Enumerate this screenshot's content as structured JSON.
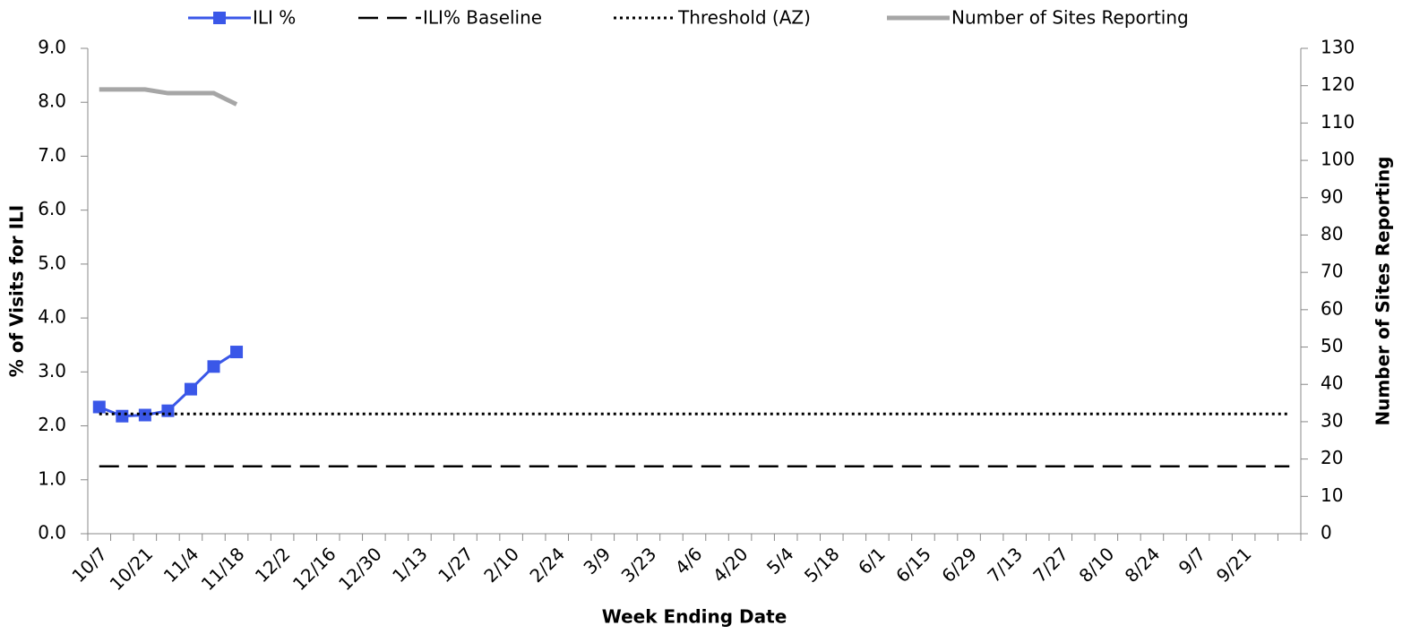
{
  "chart_data": {
    "type": "line",
    "x_label": "Week Ending Date",
    "y_label": "% of Visits for ILI",
    "y2_label": "Number of Sites Reporting",
    "categories": [
      "10/7",
      null,
      "10/21",
      null,
      "11/4",
      null,
      "11/18",
      null,
      "12/2",
      null,
      "12/16",
      null,
      "12/30",
      null,
      "1/13",
      null,
      "1/27",
      null,
      "2/10",
      null,
      "2/24",
      null,
      "3/9",
      null,
      "3/23",
      null,
      "4/6",
      null,
      "4/20",
      null,
      "5/4",
      null,
      "5/18",
      null,
      "6/1",
      null,
      "6/15",
      null,
      "6/29",
      null,
      "7/13",
      null,
      "7/27",
      null,
      "8/10",
      null,
      "8/24",
      null,
      "9/7",
      null,
      "9/21",
      null,
      null
    ],
    "ylim": [
      0,
      9
    ],
    "yticks": [
      {
        "value": 0,
        "label": "0.0"
      },
      {
        "value": 1,
        "label": "1.0"
      },
      {
        "value": 2,
        "label": "2.0"
      },
      {
        "value": 3,
        "label": "3.0"
      },
      {
        "value": 4,
        "label": "4.0"
      },
      {
        "value": 5,
        "label": "5.0"
      },
      {
        "value": 6,
        "label": "6.0"
      },
      {
        "value": 7,
        "label": "7.0"
      },
      {
        "value": 8,
        "label": "8.0"
      },
      {
        "value": 9,
        "label": "9.0"
      }
    ],
    "y2lim": [
      0,
      130
    ],
    "y2ticks": [
      0,
      10,
      20,
      30,
      40,
      50,
      60,
      70,
      80,
      90,
      100,
      110,
      120,
      130
    ],
    "legend": "top",
    "series": [
      {
        "name": "ILI %",
        "color": "#3a57e8",
        "line_style": "solid",
        "marker": "square",
        "values": [
          2.35,
          2.18,
          2.2,
          2.28,
          2.68,
          3.1,
          3.37,
          null,
          null,
          null,
          null,
          null,
          null,
          null,
          null,
          null,
          null,
          null,
          null,
          null,
          null,
          null,
          null,
          null,
          null,
          null,
          null,
          null,
          null,
          null,
          null,
          null,
          null,
          null,
          null,
          null,
          null,
          null,
          null,
          null,
          null,
          null,
          null,
          null,
          null,
          null,
          null,
          null,
          null,
          null,
          null,
          null,
          null
        ]
      },
      {
        "name": "ILI% Baseline",
        "color": "#000000",
        "line_style": "dashed",
        "values": [
          1.25,
          1.25,
          1.25,
          1.25,
          1.25,
          1.25,
          1.25,
          1.25,
          1.25,
          1.25,
          1.25,
          1.25,
          1.25,
          1.25,
          1.25,
          1.25,
          1.25,
          1.25,
          1.25,
          1.25,
          1.25,
          1.25,
          1.25,
          1.25,
          1.25,
          1.25,
          1.25,
          1.25,
          1.25,
          1.25,
          1.25,
          1.25,
          1.25,
          1.25,
          1.25,
          1.25,
          1.25,
          1.25,
          1.25,
          1.25,
          1.25,
          1.25,
          1.25,
          1.25,
          1.25,
          1.25,
          1.25,
          1.25,
          1.25,
          1.25,
          1.25,
          1.25,
          1.25
        ]
      },
      {
        "name": "Threshold (AZ)",
        "color": "#000000",
        "line_style": "dotted",
        "values": [
          2.22,
          2.22,
          2.22,
          2.22,
          2.22,
          2.22,
          2.22,
          2.22,
          2.22,
          2.22,
          2.22,
          2.22,
          2.22,
          2.22,
          2.22,
          2.22,
          2.22,
          2.22,
          2.22,
          2.22,
          2.22,
          2.22,
          2.22,
          2.22,
          2.22,
          2.22,
          2.22,
          2.22,
          2.22,
          2.22,
          2.22,
          2.22,
          2.22,
          2.22,
          2.22,
          2.22,
          2.22,
          2.22,
          2.22,
          2.22,
          2.22,
          2.22,
          2.22,
          2.22,
          2.22,
          2.22,
          2.22,
          2.22,
          2.22,
          2.22,
          2.22,
          2.22,
          2.22
        ]
      },
      {
        "name": "Number of Sites Reporting",
        "color": "#a6a6a6",
        "line_style": "thick",
        "axis": "y2",
        "values": [
          119,
          119,
          119,
          118,
          118,
          118,
          115,
          null,
          null,
          null,
          null,
          null,
          null,
          null,
          null,
          null,
          null,
          null,
          null,
          null,
          null,
          null,
          null,
          null,
          null,
          null,
          null,
          null,
          null,
          null,
          null,
          null,
          null,
          null,
          null,
          null,
          null,
          null,
          null,
          null,
          null,
          null,
          null,
          null,
          null,
          null,
          null,
          null,
          null,
          null,
          null,
          null,
          null
        ]
      }
    ]
  }
}
